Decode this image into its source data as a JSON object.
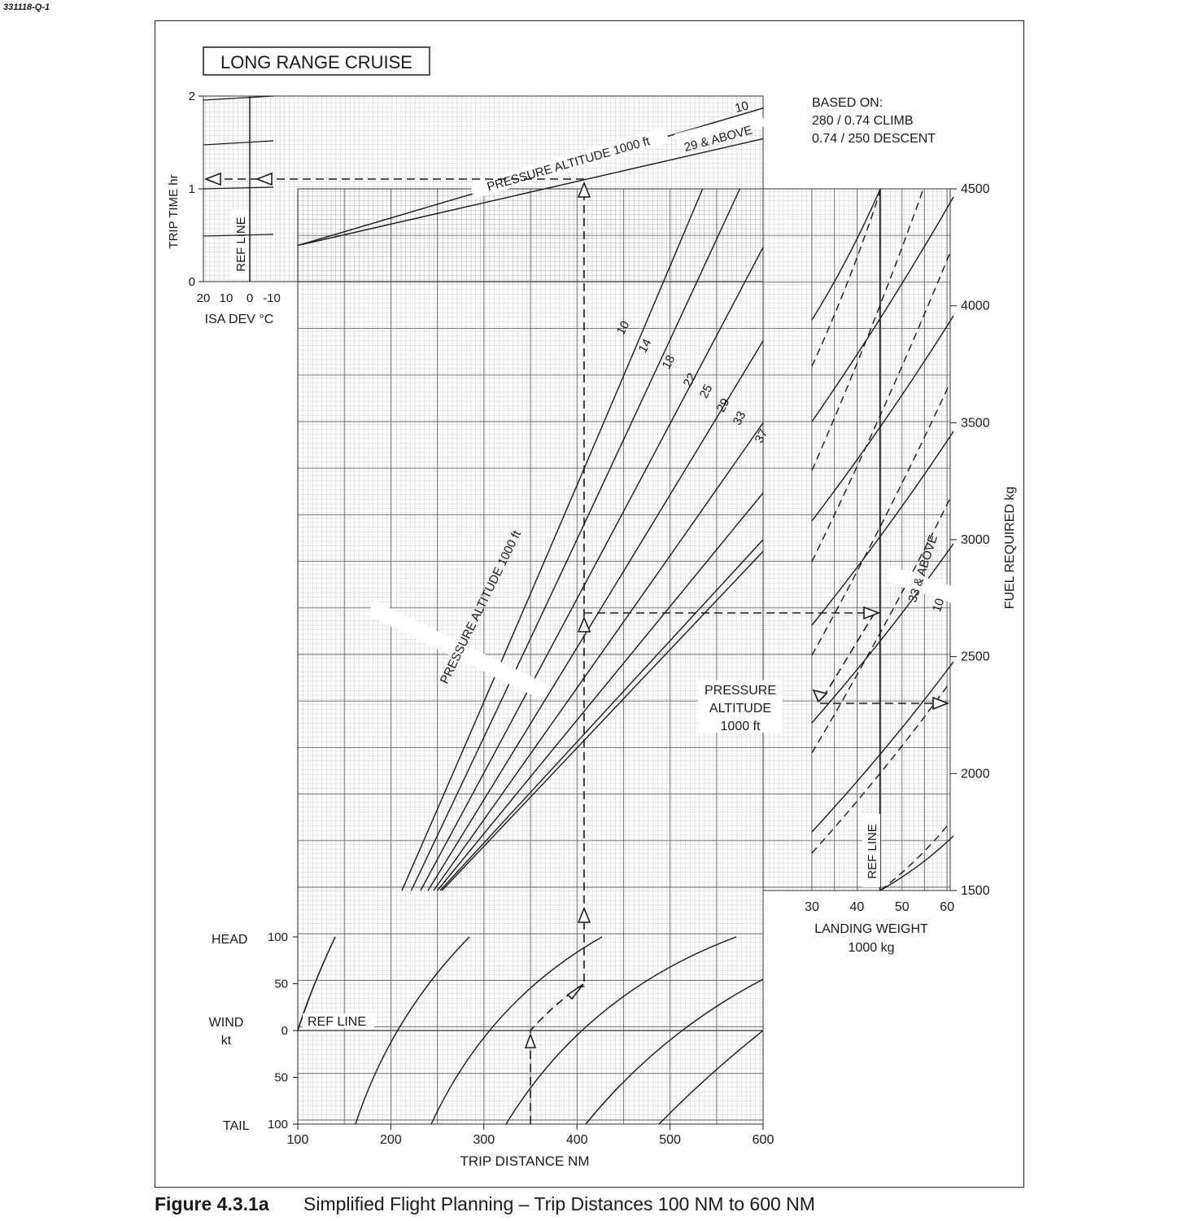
{
  "document_id": "331118-Q-1",
  "title": "LONG RANGE CRUISE",
  "based_on": [
    "BASED ON:",
    "280 / 0.74 CLIMB",
    "0.74 / 250 DESCENT"
  ],
  "caption": {
    "number": "Figure 4.3.1a",
    "text": "Simplified Flight Planning – Trip Distances 100 NM to 600 NM"
  },
  "labels": {
    "trip_time_axis": "TRIP TIME  hr",
    "isa_dev_axis": "ISA DEV °C",
    "ref_line": "REF LINE",
    "trip_distance_axis": "TRIP DISTANCE  NM",
    "wind_axis_1": "WIND",
    "wind_axis_2": "kt",
    "head": "HEAD",
    "tail": "TAIL",
    "fuel_axis": "FUEL REQUIRED  kg",
    "landing_weight_1": "LANDING WEIGHT",
    "landing_weight_2": "1000 kg",
    "pressure_altitude_time": "PRESSURE ALTITUDE  1000 ft",
    "pressure_altitude_fuel": "PRESSURE ALTITUDE  1000 ft",
    "pa_box_1": "PRESSURE",
    "pa_box_2": "ALTITUDE",
    "pa_box_3": "1000 ft",
    "time_curve_10": "10",
    "time_curve_29": "29 & ABOVE",
    "weight_curve_33": "33 & ABOVE",
    "weight_curve_10": "10"
  },
  "chart_data": {
    "type": "line",
    "title": "LONG RANGE CRUISE",
    "trip_time_ticks": [
      "0",
      "1",
      "2"
    ],
    "isa_dev_ticks": [
      "20",
      "10",
      "0",
      "-10"
    ],
    "trip_distance_ticks": [
      "100",
      "200",
      "300",
      "400",
      "500",
      "600"
    ],
    "wind_ticks": [
      "100",
      "50",
      "0",
      "50",
      "100"
    ],
    "fuel_ticks": [
      "1500",
      "2000",
      "2500",
      "3000",
      "3500",
      "4000",
      "4500"
    ],
    "landing_weight_ticks": [
      "30",
      "40",
      "50",
      "60"
    ],
    "trip_time_series": [
      {
        "name": "10",
        "x": [
          100,
          600
        ],
        "y": [
          0.39,
          1.87
        ]
      },
      {
        "name": "29 & ABOVE",
        "x": [
          100,
          600
        ],
        "y": [
          0.39,
          1.54
        ]
      }
    ],
    "fuel_series": [
      {
        "name": "10",
        "x": [
          212,
          535
        ],
        "y": [
          1500,
          4500
        ]
      },
      {
        "name": "14",
        "x": [
          222,
          575
        ],
        "y": [
          1500,
          4500
        ]
      },
      {
        "name": "18",
        "x": [
          232,
          600
        ],
        "y": [
          1500,
          4250
        ]
      },
      {
        "name": "22",
        "x": [
          240,
          600
        ],
        "y": [
          1500,
          3850
        ]
      },
      {
        "name": "25",
        "x": [
          246,
          600
        ],
        "y": [
          1500,
          3500
        ]
      },
      {
        "name": "29",
        "x": [
          250,
          600
        ],
        "y": [
          1500,
          3200
        ]
      },
      {
        "name": "33",
        "x": [
          253,
          600
        ],
        "y": [
          1500,
          3000
        ]
      },
      {
        "name": "37",
        "x": [
          255,
          600
        ],
        "y": [
          1500,
          2950
        ]
      }
    ],
    "example": {
      "wind_kt": "50 HEAD",
      "trip_distance_nm": 405,
      "trip_time_hr": 1.1,
      "fuel_ref_kg": 2700,
      "fuel_required_kg": 2300
    }
  }
}
